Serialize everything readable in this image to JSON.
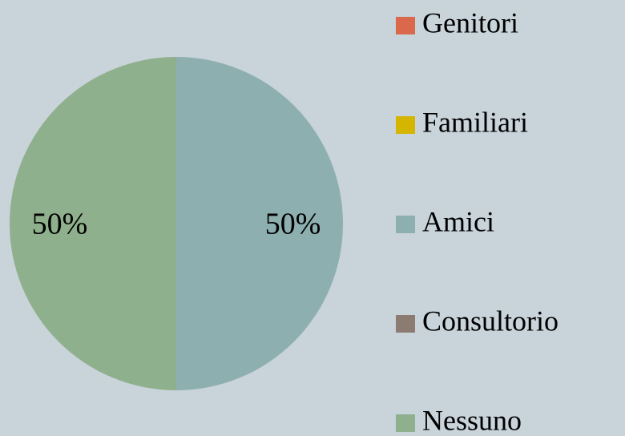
{
  "chart_data": {
    "type": "pie",
    "categories": [
      "Genitori",
      "Familiari",
      "Amici",
      "Consultorio",
      "Nessuno"
    ],
    "values": [
      0,
      0,
      50,
      0,
      50
    ],
    "value_labels": [
      null,
      null,
      "50%",
      null,
      "50%"
    ],
    "colors": [
      "#d9694a",
      "#d4b600",
      "#8eafb0",
      "#8c7b70",
      "#8fb08c"
    ]
  }
}
